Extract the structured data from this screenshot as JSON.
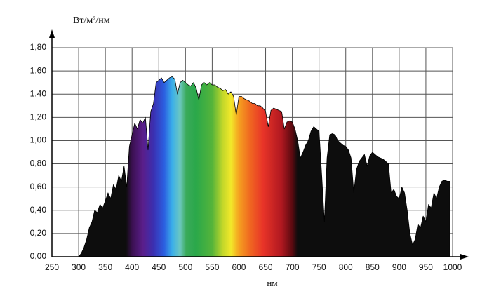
{
  "chart_data": {
    "type": "area",
    "y_label": "Вт/м²/нм",
    "x_label": "нм",
    "x": [
      300,
      305,
      310,
      315,
      320,
      325,
      330,
      335,
      340,
      345,
      350,
      355,
      360,
      365,
      370,
      375,
      380,
      385,
      390,
      395,
      400,
      405,
      410,
      415,
      420,
      425,
      430,
      435,
      440,
      445,
      450,
      455,
      460,
      465,
      470,
      475,
      480,
      485,
      490,
      495,
      500,
      505,
      510,
      515,
      520,
      525,
      530,
      535,
      540,
      545,
      550,
      555,
      560,
      565,
      570,
      575,
      580,
      585,
      590,
      595,
      600,
      605,
      610,
      615,
      620,
      625,
      630,
      635,
      640,
      645,
      650,
      655,
      660,
      665,
      670,
      675,
      680,
      685,
      690,
      695,
      700,
      705,
      710,
      715,
      720,
      725,
      730,
      735,
      740,
      745,
      750,
      755,
      760,
      765,
      770,
      775,
      780,
      785,
      790,
      795,
      800,
      805,
      810,
      815,
      820,
      825,
      830,
      835,
      840,
      845,
      850,
      855,
      860,
      865,
      870,
      875,
      880,
      885,
      890,
      895,
      900,
      905,
      910,
      915,
      920,
      925,
      930,
      935,
      940,
      945,
      950,
      955,
      960,
      965,
      970,
      975,
      980,
      985,
      990,
      995
    ],
    "values": [
      0,
      0.03,
      0.08,
      0.15,
      0.25,
      0.3,
      0.4,
      0.38,
      0.45,
      0.42,
      0.48,
      0.55,
      0.5,
      0.62,
      0.58,
      0.7,
      0.65,
      0.78,
      0.6,
      0.95,
      1.05,
      1.15,
      1.1,
      1.18,
      1.15,
      1.2,
      0.92,
      1.25,
      1.32,
      1.5,
      1.52,
      1.54,
      1.5,
      1.52,
      1.54,
      1.55,
      1.53,
      1.4,
      1.5,
      1.52,
      1.5,
      1.48,
      1.47,
      1.5,
      1.45,
      1.35,
      1.48,
      1.5,
      1.48,
      1.5,
      1.48,
      1.48,
      1.46,
      1.45,
      1.43,
      1.44,
      1.4,
      1.42,
      1.38,
      1.22,
      1.38,
      1.38,
      1.36,
      1.35,
      1.34,
      1.32,
      1.32,
      1.3,
      1.3,
      1.28,
      1.25,
      1.12,
      1.26,
      1.28,
      1.27,
      1.26,
      1.25,
      1.1,
      1.16,
      1.17,
      1.16,
      1.1,
      1.0,
      0.85,
      0.9,
      0.96,
      1.0,
      1.08,
      1.12,
      1.1,
      1.08,
      0.7,
      0.3,
      0.85,
      1.05,
      1.06,
      1.05,
      1.0,
      0.98,
      0.96,
      0.95,
      0.92,
      0.85,
      0.55,
      0.75,
      0.82,
      0.85,
      0.88,
      0.78,
      0.87,
      0.9,
      0.88,
      0.86,
      0.85,
      0.84,
      0.82,
      0.8,
      0.55,
      0.58,
      0.52,
      0.5,
      0.6,
      0.55,
      0.4,
      0.2,
      0.1,
      0.15,
      0.28,
      0.25,
      0.35,
      0.3,
      0.45,
      0.42,
      0.55,
      0.5,
      0.6,
      0.65,
      0.66,
      0.65,
      0.65
    ],
    "xlim": [
      250,
      1000
    ],
    "ylim": [
      0,
      1.8
    ],
    "xticks": [
      250,
      300,
      350,
      400,
      450,
      500,
      550,
      600,
      650,
      700,
      750,
      800,
      850,
      900,
      950,
      1000
    ],
    "yticks": [
      {
        "value": 0,
        "label": "0,00"
      },
      {
        "value": 0.2,
        "label": "0,20"
      },
      {
        "value": 0.4,
        "label": "0,40"
      },
      {
        "value": 0.6,
        "label": "0,60"
      },
      {
        "value": 0.8,
        "label": "0,80"
      },
      {
        "value": 1.0,
        "label": "1,00"
      },
      {
        "value": 1.2,
        "label": "1,20"
      },
      {
        "value": 1.4,
        "label": "1,40"
      },
      {
        "value": 1.6,
        "label": "1,60"
      },
      {
        "value": 1.8,
        "label": "1,80"
      }
    ],
    "grid": true
  }
}
